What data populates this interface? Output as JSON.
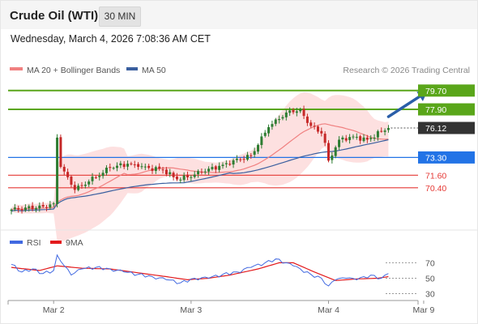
{
  "header": {
    "title": "Crude Oil (WTI)",
    "interval": "30 MIN",
    "datetime": "Wednesday, March 4, 2026 7:08:36 AM CET"
  },
  "colors": {
    "candle_up": "#2e7d32",
    "candle_down": "#c62828",
    "ma20": "#f08080",
    "bollinger_fill": "#fde0e0",
    "ma50": "#3a5f9f",
    "resistance": "#5aa61a",
    "pivot": "#2273e6",
    "support": "#e53935",
    "last_price": "#333333",
    "rsi": "#4169e1",
    "rsi_ma": "#e31a1c",
    "arrow": "#2a5ea8"
  },
  "chart_data": [
    {
      "type": "candlestick",
      "legend": [
        {
          "name": "MA 20 + Bollinger Bands",
          "color": "#f08080"
        },
        {
          "name": "MA 50",
          "color": "#3a5f9f"
        }
      ],
      "source": "Research © 2026 Trading Central",
      "price_range": [
        66.2,
        81.7
      ],
      "levels": [
        {
          "value": 79.7,
          "label": "79.70",
          "kind": "resistance"
        },
        {
          "value": 77.9,
          "label": "77.90",
          "kind": "resistance"
        },
        {
          "value": 76.12,
          "label": "76.12",
          "kind": "last"
        },
        {
          "value": 73.3,
          "label": "73.30",
          "kind": "pivot"
        },
        {
          "value": 71.6,
          "label": "71.60",
          "kind": "support"
        },
        {
          "value": 70.4,
          "label": "70.40",
          "kind": "support"
        }
      ],
      "anchors": [
        [
          0,
          68.3
        ],
        [
          9,
          68.6
        ],
        [
          12,
          68.9
        ],
        [
          13,
          75.2
        ],
        [
          14,
          72.4
        ],
        [
          18,
          70.2
        ],
        [
          22,
          71.0
        ],
        [
          28,
          72.3
        ],
        [
          33,
          72.7
        ],
        [
          36,
          72.4
        ],
        [
          39,
          72.3
        ],
        [
          43,
          72.1
        ],
        [
          47,
          71.2
        ],
        [
          50,
          71.4
        ],
        [
          54,
          71.9
        ],
        [
          60,
          72.6
        ],
        [
          68,
          73.5
        ],
        [
          73,
          76.2
        ],
        [
          78,
          77.6
        ],
        [
          82,
          77.9
        ],
        [
          84,
          76.6
        ],
        [
          88,
          75.6
        ],
        [
          89,
          74.7
        ],
        [
          90,
          73.0
        ],
        [
          93,
          75.0
        ],
        [
          97,
          75.3
        ],
        [
          101,
          75.0
        ],
        [
          105,
          75.8
        ],
        [
          107,
          76.12
        ]
      ],
      "trend_arrow": {
        "from": [
          107,
          77.2
        ],
        "to": [
          118,
          79.6
        ]
      }
    },
    {
      "type": "line",
      "legend": [
        {
          "name": "RSI",
          "color": "#4169e1"
        },
        {
          "name": "9MA",
          "color": "#e31a1c"
        }
      ],
      "y_range": [
        20,
        82
      ],
      "y_ticks": [
        70,
        50,
        30
      ],
      "rsi_anchors": [
        [
          0,
          68
        ],
        [
          3,
          58
        ],
        [
          6,
          62
        ],
        [
          9,
          56
        ],
        [
          12,
          60
        ],
        [
          13,
          80
        ],
        [
          14,
          72
        ],
        [
          17,
          54
        ],
        [
          20,
          62
        ],
        [
          24,
          64
        ],
        [
          28,
          62
        ],
        [
          32,
          58
        ],
        [
          36,
          55
        ],
        [
          40,
          52
        ],
        [
          44,
          48
        ],
        [
          48,
          44
        ],
        [
          52,
          50
        ],
        [
          56,
          50
        ],
        [
          60,
          55
        ],
        [
          64,
          58
        ],
        [
          68,
          64
        ],
        [
          72,
          70
        ],
        [
          75,
          75
        ],
        [
          78,
          70
        ],
        [
          80,
          66
        ],
        [
          82,
          62
        ],
        [
          85,
          55
        ],
        [
          88,
          50
        ],
        [
          90,
          40
        ],
        [
          92,
          48
        ],
        [
          95,
          50
        ],
        [
          98,
          48
        ],
        [
          102,
          54
        ],
        [
          105,
          50
        ],
        [
          107,
          56
        ]
      ],
      "ma9_anchors": [
        [
          0,
          64
        ],
        [
          8,
          60
        ],
        [
          13,
          66
        ],
        [
          20,
          63
        ],
        [
          28,
          62
        ],
        [
          36,
          57
        ],
        [
          44,
          52
        ],
        [
          50,
          48
        ],
        [
          56,
          50
        ],
        [
          62,
          54
        ],
        [
          70,
          62
        ],
        [
          76,
          70
        ],
        [
          80,
          70
        ],
        [
          86,
          58
        ],
        [
          92,
          47
        ],
        [
          98,
          49
        ],
        [
          104,
          50
        ],
        [
          107,
          52
        ]
      ],
      "x_ticks": [
        {
          "label": "Mar 2",
          "index": 12
        },
        {
          "label": "Mar 3",
          "index": 51
        },
        {
          "label": "Mar 4",
          "index": 90
        },
        {
          "label": "Mar 9",
          "index": 117
        }
      ]
    }
  ]
}
